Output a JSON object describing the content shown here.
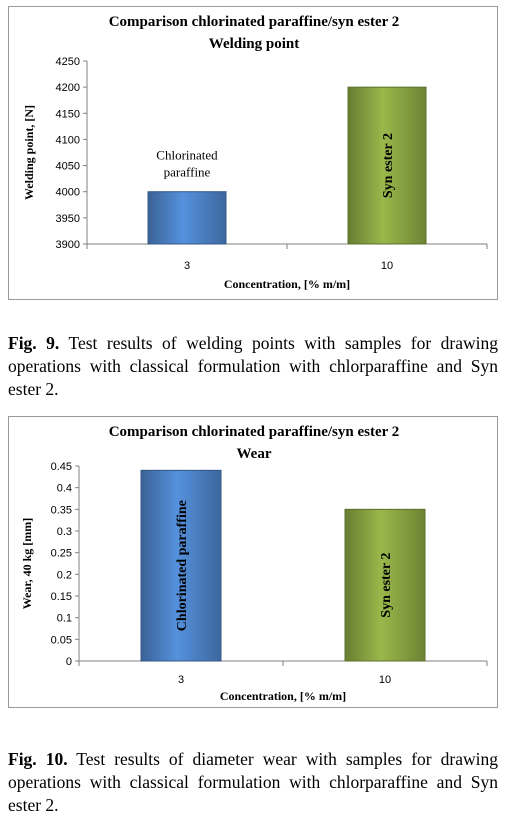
{
  "charts": [
    {
      "chart_data": {
        "type": "bar",
        "title": [
          "Comparison chlorinated paraffine/syn ester 2",
          "Welding point"
        ],
        "xlabel": "Concentration, [% m/m]",
        "ylabel": "Welding point, [N]",
        "categories": [
          "3",
          "10"
        ],
        "values": [
          4000,
          4200
        ],
        "ylim": [
          3900,
          4250
        ],
        "yticks": [
          3900,
          3950,
          4000,
          4050,
          4100,
          4150,
          4200,
          4250
        ],
        "bar_labels": [
          [
            "Chlorinated",
            "paraffine"
          ],
          [
            "Syn ester 2"
          ]
        ],
        "bar_label_style": [
          "horizontal-above",
          "vertical-inside"
        ],
        "bar_colors": [
          "#4a7ec0",
          "#85a040"
        ],
        "grid": false,
        "legend": "none"
      }
    },
    {
      "chart_data": {
        "type": "bar",
        "title": [
          "Comparison chlorinated paraffine/syn ester 2",
          "Wear"
        ],
        "xlabel": "Concentration, [% m/m]",
        "ylabel": "Wear, 40 kg [mm]",
        "categories": [
          "3",
          "10"
        ],
        "values": [
          0.44,
          0.35
        ],
        "ylim": [
          0,
          0.45
        ],
        "yticks": [
          "0",
          "0.05",
          "0.1",
          "0.15",
          "0.2",
          "0.25",
          "0.3",
          "0.35",
          "0.4",
          "0.45"
        ],
        "bar_labels": [
          [
            "Chlorinated paraffine"
          ],
          [
            "Syn ester 2"
          ]
        ],
        "bar_label_style": [
          "vertical-inside",
          "vertical-inside"
        ],
        "bar_colors": [
          "#4a7ec0",
          "#85a040"
        ],
        "grid": false,
        "legend": "none"
      }
    }
  ],
  "captions": [
    {
      "label": "Fig. 9.",
      "text": " Test results of welding points with samples for drawing operations with classical formulation with chlorparaffine and Syn ester 2."
    },
    {
      "label": "Fig. 10.",
      "text": " Test results of diameter wear with samples for drawing operations with classical formulation with chlorparaffine and Syn ester 2."
    }
  ]
}
